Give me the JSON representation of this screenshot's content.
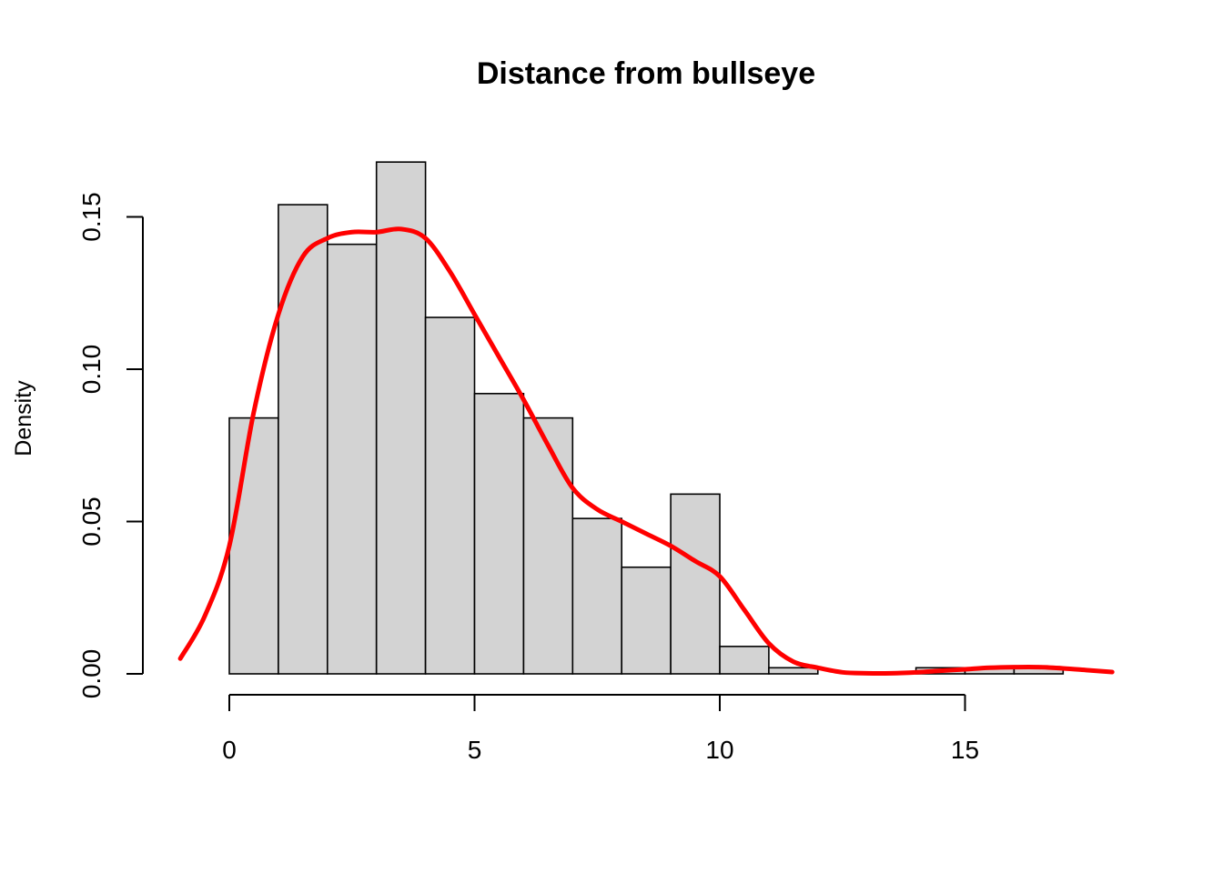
{
  "chart_data": {
    "type": "bar",
    "title": "Distance from bullseye",
    "xlabel": "",
    "ylabel": "Density",
    "xlim": [
      -1.5,
      18.5
    ],
    "ylim": [
      0,
      0.175
    ],
    "x_ticks": [
      0,
      5,
      10,
      15
    ],
    "y_ticks": [
      0.0,
      0.05,
      0.1,
      0.15
    ],
    "y_tick_labels": [
      "0.00",
      "0.05",
      "0.10",
      "0.15"
    ],
    "bin_edges": [
      0,
      1,
      2,
      3,
      4,
      5,
      6,
      7,
      8,
      9,
      10,
      11,
      12,
      13,
      14,
      15,
      16,
      17
    ],
    "values": [
      0.084,
      0.154,
      0.141,
      0.168,
      0.117,
      0.092,
      0.084,
      0.051,
      0.035,
      0.059,
      0.009,
      0.002,
      0,
      0,
      0.002,
      0.002,
      0.002
    ],
    "bar_color": "#d3d3d3",
    "density_curve": {
      "color": "#ff0000",
      "x": [
        -1.0,
        -0.5,
        0.0,
        0.5,
        1.0,
        1.5,
        2.0,
        2.5,
        3.0,
        3.5,
        4.0,
        4.5,
        5.0,
        5.5,
        6.0,
        6.5,
        7.0,
        7.5,
        8.0,
        8.5,
        9.0,
        9.5,
        10.0,
        10.5,
        11.0,
        11.5,
        12.0,
        12.5,
        13.0,
        13.5,
        14.0,
        14.5,
        15.0,
        15.5,
        16.0,
        16.5,
        17.0,
        17.5,
        18.0
      ],
      "y": [
        0.005,
        0.019,
        0.042,
        0.086,
        0.118,
        0.137,
        0.143,
        0.145,
        0.145,
        0.146,
        0.143,
        0.132,
        0.118,
        0.104,
        0.09,
        0.075,
        0.061,
        0.054,
        0.05,
        0.046,
        0.042,
        0.037,
        0.032,
        0.021,
        0.01,
        0.004,
        0.002,
        0.0005,
        0.0002,
        0.0002,
        0.0005,
        0.001,
        0.0015,
        0.002,
        0.0022,
        0.0022,
        0.0018,
        0.0012,
        0.0006
      ]
    },
    "grid": false,
    "legend": "none"
  }
}
